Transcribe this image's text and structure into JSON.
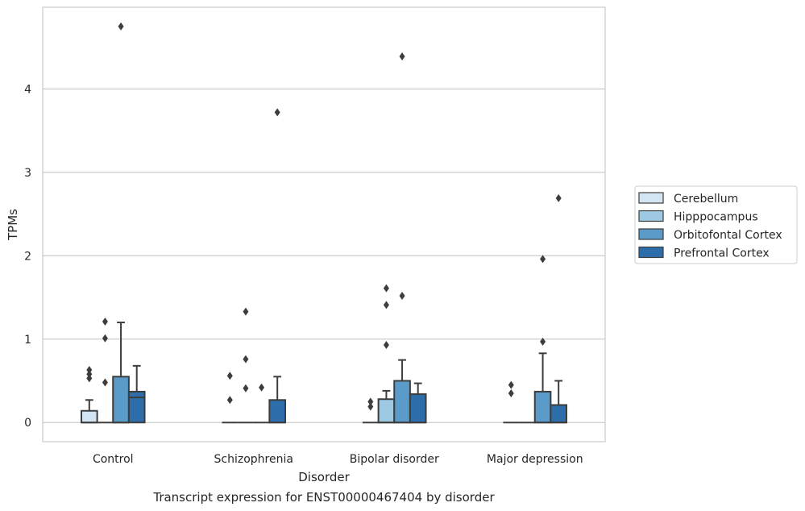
{
  "chart_data": {
    "type": "box",
    "title": "",
    "caption": "Transcript expression for ENST00000467404 by disorder",
    "xlabel": "Disorder",
    "ylabel": "TPMs",
    "ylim": [
      -0.23,
      4.98
    ],
    "yticks": [
      0,
      1,
      2,
      3,
      4
    ],
    "grid": "horizontal",
    "legend_position": "right",
    "categories": [
      "Control",
      "Schizophrenia",
      "Bipolar disorder",
      "Major depression"
    ],
    "series": [
      {
        "name": "Cerebellum",
        "color": "#d3e4f3",
        "boxes": [
          {
            "q1": 0,
            "median": 0,
            "q3": 0.14,
            "whisker_low": 0,
            "whisker_high": 0.27,
            "outliers": [
              0.53,
              0.58,
              0.63
            ]
          },
          {
            "q1": 0,
            "median": 0,
            "q3": 0,
            "whisker_low": 0,
            "whisker_high": 0,
            "outliers": [
              0.27,
              0.56
            ]
          },
          {
            "q1": 0,
            "median": 0,
            "q3": 0,
            "whisker_low": 0,
            "whisker_high": 0,
            "outliers": [
              0.19,
              0.25
            ]
          },
          {
            "q1": 0,
            "median": 0,
            "q3": 0,
            "whisker_low": 0,
            "whisker_high": 0,
            "outliers": [
              0.35,
              0.45
            ]
          }
        ]
      },
      {
        "name": "Hipppocampus",
        "color": "#9ec9e2",
        "boxes": [
          {
            "q1": 0,
            "median": 0,
            "q3": 0,
            "whisker_low": 0,
            "whisker_high": 0,
            "outliers": [
              0.48,
              1.01,
              1.21
            ]
          },
          {
            "q1": 0,
            "median": 0,
            "q3": 0,
            "whisker_low": 0,
            "whisker_high": 0,
            "outliers": [
              0.41,
              0.76,
              1.33
            ]
          },
          {
            "q1": 0,
            "median": 0,
            "q3": 0.28,
            "whisker_low": 0,
            "whisker_high": 0.38,
            "outliers": [
              0.93,
              1.41,
              1.61
            ]
          },
          {
            "q1": 0,
            "median": 0,
            "q3": 0,
            "whisker_low": 0,
            "whisker_high": 0,
            "outliers": []
          }
        ]
      },
      {
        "name": "Orbitofontal Cortex",
        "color": "#5a9bc9",
        "boxes": [
          {
            "q1": 0,
            "median": 0,
            "q3": 0.55,
            "whisker_low": 0,
            "whisker_high": 1.2,
            "outliers": [
              4.75
            ]
          },
          {
            "q1": 0,
            "median": 0,
            "q3": 0,
            "whisker_low": 0,
            "whisker_high": 0,
            "outliers": [
              0.42
            ]
          },
          {
            "q1": 0,
            "median": 0,
            "q3": 0.5,
            "whisker_low": 0,
            "whisker_high": 0.75,
            "outliers": [
              1.52,
              4.39
            ]
          },
          {
            "q1": 0,
            "median": 0,
            "q3": 0.37,
            "whisker_low": 0,
            "whisker_high": 0.83,
            "outliers": [
              0.97,
              1.96
            ]
          }
        ]
      },
      {
        "name": "Prefrontal Cortex",
        "color": "#2d6eaa",
        "boxes": [
          {
            "q1": 0,
            "median": 0.3,
            "q3": 0.37,
            "whisker_low": 0,
            "whisker_high": 0.68,
            "outliers": []
          },
          {
            "q1": 0,
            "median": 0,
            "q3": 0.27,
            "whisker_low": 0,
            "whisker_high": 0.55,
            "outliers": [
              3.72
            ]
          },
          {
            "q1": 0,
            "median": 0,
            "q3": 0.34,
            "whisker_low": 0,
            "whisker_high": 0.47,
            "outliers": []
          },
          {
            "q1": 0,
            "median": 0,
            "q3": 0.21,
            "whisker_low": 0,
            "whisker_high": 0.5,
            "outliers": [
              2.69
            ]
          }
        ]
      }
    ]
  }
}
